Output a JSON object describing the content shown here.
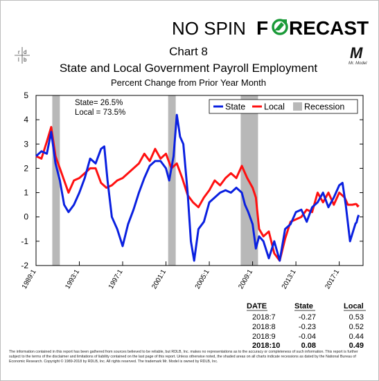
{
  "brand": {
    "prefix": "NO SPIN ",
    "name_f": "F",
    "name_rest": "RECAST",
    "logo_letters": [
      "r",
      "d",
      "l",
      "b"
    ],
    "mascot_letter": "M",
    "mascot_caption": "Mr. Model",
    "arrow_color": "#1a9a38"
  },
  "chart_data": {
    "type": "line",
    "title": "Chart 8",
    "subtitle": "State and Local Government Payroll Employment",
    "ylabel_note": "Percent Change from Prior Year Month",
    "annotations": [
      "State=  26.5%",
      "Local = 73.5%"
    ],
    "xlim": [
      1989.0,
      2019.2
    ],
    "ylim": [
      -2,
      5
    ],
    "yticks": [
      "-2",
      "-1",
      "0",
      "1",
      "2",
      "3",
      "4",
      "5"
    ],
    "xtick_labels": [
      "1989:1",
      "1993:1",
      "1997:1",
      "2001:1",
      "2005:1",
      "2009:1",
      "2013:1",
      "2017:1"
    ],
    "xtick_values": [
      1989.0,
      1993.0,
      1997.0,
      2001.0,
      2005.0,
      2009.0,
      2013.0,
      2017.0
    ],
    "grid": false,
    "legend_placement": "top-right",
    "legend": [
      "State",
      "Local",
      "Recession"
    ],
    "recessions": [
      [
        1990.5,
        1991.2
      ],
      [
        2001.2,
        2001.9
      ],
      [
        2007.9,
        2009.5
      ]
    ],
    "series": [
      {
        "name": "State",
        "color": "#0a20e0",
        "points": [
          [
            1989.0,
            2.5
          ],
          [
            1989.5,
            2.7
          ],
          [
            1990.0,
            2.6
          ],
          [
            1990.4,
            3.5
          ],
          [
            1990.8,
            2.2
          ],
          [
            1991.2,
            1.5
          ],
          [
            1991.6,
            0.5
          ],
          [
            1992.0,
            0.2
          ],
          [
            1992.5,
            0.5
          ],
          [
            1993.0,
            1.0
          ],
          [
            1993.5,
            1.6
          ],
          [
            1994.0,
            2.4
          ],
          [
            1994.5,
            2.2
          ],
          [
            1995.0,
            2.8
          ],
          [
            1995.3,
            2.9
          ],
          [
            1995.6,
            1.5
          ],
          [
            1996.0,
            0.0
          ],
          [
            1996.5,
            -0.5
          ],
          [
            1997.0,
            -1.2
          ],
          [
            1997.5,
            -0.3
          ],
          [
            1998.0,
            0.3
          ],
          [
            1998.5,
            1.0
          ],
          [
            1999.0,
            1.6
          ],
          [
            1999.5,
            2.1
          ],
          [
            2000.0,
            2.3
          ],
          [
            2000.5,
            2.3
          ],
          [
            2001.0,
            2.0
          ],
          [
            2001.3,
            1.5
          ],
          [
            2001.7,
            2.5
          ],
          [
            2002.0,
            4.2
          ],
          [
            2002.3,
            3.3
          ],
          [
            2002.6,
            3.0
          ],
          [
            2002.8,
            2.0
          ],
          [
            2003.0,
            1.0
          ],
          [
            2003.3,
            -1.0
          ],
          [
            2003.6,
            -1.8
          ],
          [
            2004.0,
            -0.5
          ],
          [
            2004.5,
            -0.2
          ],
          [
            2005.0,
            0.6
          ],
          [
            2005.5,
            0.8
          ],
          [
            2006.0,
            1.0
          ],
          [
            2006.5,
            1.1
          ],
          [
            2007.0,
            1.0
          ],
          [
            2007.5,
            1.2
          ],
          [
            2008.0,
            1.0
          ],
          [
            2008.3,
            0.5
          ],
          [
            2008.6,
            0.2
          ],
          [
            2009.0,
            -0.3
          ],
          [
            2009.3,
            -1.3
          ],
          [
            2009.6,
            -0.8
          ],
          [
            2010.0,
            -1.0
          ],
          [
            2010.5,
            -1.7
          ],
          [
            2011.0,
            -1.0
          ],
          [
            2011.5,
            -1.8
          ],
          [
            2012.0,
            -0.5
          ],
          [
            2012.5,
            -0.3
          ],
          [
            2013.0,
            0.2
          ],
          [
            2013.5,
            0.3
          ],
          [
            2014.0,
            -0.2
          ],
          [
            2014.5,
            0.4
          ],
          [
            2015.0,
            0.6
          ],
          [
            2015.5,
            1.0
          ],
          [
            2016.0,
            0.4
          ],
          [
            2016.5,
            0.8
          ],
          [
            2017.0,
            1.3
          ],
          [
            2017.3,
            1.4
          ],
          [
            2017.6,
            0.5
          ],
          [
            2018.0,
            -1.0
          ],
          [
            2018.5,
            -0.27
          ],
          [
            2018.6,
            -0.23
          ],
          [
            2018.7,
            -0.04
          ],
          [
            2018.8,
            0.08
          ]
        ]
      },
      {
        "name": "Local",
        "color": "#ff1010",
        "points": [
          [
            1989.0,
            2.5
          ],
          [
            1989.5,
            2.4
          ],
          [
            1990.0,
            3.1
          ],
          [
            1990.4,
            3.7
          ],
          [
            1990.8,
            2.5
          ],
          [
            1991.2,
            2.0
          ],
          [
            1991.6,
            1.5
          ],
          [
            1992.0,
            1.0
          ],
          [
            1992.5,
            1.5
          ],
          [
            1993.0,
            1.6
          ],
          [
            1993.5,
            1.8
          ],
          [
            1994.0,
            2.0
          ],
          [
            1994.5,
            2.0
          ],
          [
            1995.0,
            1.4
          ],
          [
            1995.5,
            1.2
          ],
          [
            1996.0,
            1.3
          ],
          [
            1996.5,
            1.5
          ],
          [
            1997.0,
            1.6
          ],
          [
            1997.5,
            1.8
          ],
          [
            1998.0,
            2.0
          ],
          [
            1998.5,
            2.2
          ],
          [
            1999.0,
            2.6
          ],
          [
            1999.5,
            2.3
          ],
          [
            2000.0,
            2.8
          ],
          [
            2000.5,
            2.4
          ],
          [
            2001.0,
            2.6
          ],
          [
            2001.5,
            2.0
          ],
          [
            2002.0,
            2.2
          ],
          [
            2002.5,
            1.6
          ],
          [
            2003.0,
            0.9
          ],
          [
            2003.5,
            0.6
          ],
          [
            2004.0,
            0.4
          ],
          [
            2004.5,
            0.8
          ],
          [
            2005.0,
            1.1
          ],
          [
            2005.5,
            1.5
          ],
          [
            2006.0,
            1.3
          ],
          [
            2006.5,
            1.6
          ],
          [
            2007.0,
            1.8
          ],
          [
            2007.5,
            1.6
          ],
          [
            2008.0,
            2.1
          ],
          [
            2008.5,
            1.6
          ],
          [
            2009.0,
            1.2
          ],
          [
            2009.3,
            0.8
          ],
          [
            2009.6,
            -0.5
          ],
          [
            2010.0,
            -0.8
          ],
          [
            2010.5,
            -0.6
          ],
          [
            2011.0,
            -1.5
          ],
          [
            2011.5,
            -1.8
          ],
          [
            2012.0,
            -0.9
          ],
          [
            2012.5,
            -0.2
          ],
          [
            2013.0,
            -0.1
          ],
          [
            2013.5,
            0.0
          ],
          [
            2014.0,
            0.3
          ],
          [
            2014.5,
            0.2
          ],
          [
            2015.0,
            1.0
          ],
          [
            2015.5,
            0.6
          ],
          [
            2016.0,
            1.0
          ],
          [
            2016.5,
            0.5
          ],
          [
            2017.0,
            1.0
          ],
          [
            2017.5,
            0.8
          ],
          [
            2017.8,
            0.5
          ],
          [
            2018.2,
            0.5
          ],
          [
            2018.5,
            0.53
          ],
          [
            2018.6,
            0.52
          ],
          [
            2018.7,
            0.44
          ],
          [
            2018.8,
            0.49
          ]
        ]
      }
    ]
  },
  "table": {
    "headers": [
      "DATE",
      "State",
      "Local"
    ],
    "rows": [
      {
        "date": "2018:7",
        "state": "-0.27",
        "local": "0.53"
      },
      {
        "date": "2018:8",
        "state": "-0.23",
        "local": "0.52"
      },
      {
        "date": "2018:9",
        "state": "-0.04",
        "local": "0.44"
      },
      {
        "date": "2018:10",
        "state": "0.08",
        "local": "0.49"
      }
    ]
  },
  "disclaimer": "The information contained in this report has been gathered from sources believed to be reliable, but RDLB, Inc. makes no representations as to the accuracy or completeness of such information. This report is further subject to the terms of the disclaimer and limitations of liability contained on the last page of this report. Unless otherwise noted, the shaded areas on all charts indicate recessions as dated by the National Bureau of Economic Research. Copyright © 1989-2018 by RDLB, Inc. All rights reserved. The trademark Mr. Model is owned by RDLB, Inc."
}
